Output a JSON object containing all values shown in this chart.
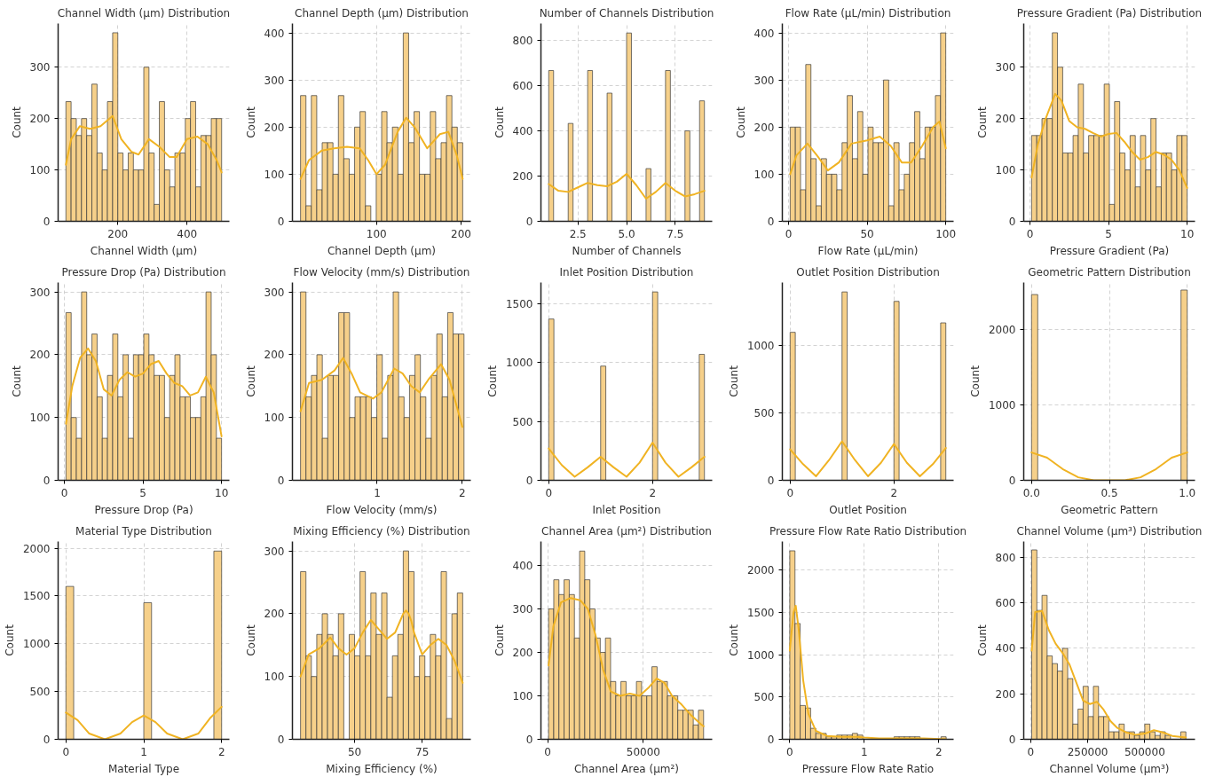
{
  "chart_data": [
    {
      "type": "histogram",
      "title": "Channel Width (µm) Distribution",
      "xlabel": "Channel Width (µm)",
      "ylabel": "Count",
      "xlim": [
        27.5,
        522.5
      ],
      "xticks": [
        200,
        400
      ],
      "ylim": [
        0,
        385
      ],
      "yticks": [
        0,
        100,
        200,
        300
      ],
      "grid": true,
      "series": [
        {
          "type": "histogram",
          "color": "#f6d08a",
          "bins": [
            50,
            65,
            80,
            95,
            110,
            125,
            140,
            155,
            170,
            185,
            200,
            215,
            230,
            245,
            260,
            275,
            290,
            305,
            320,
            335,
            350,
            365,
            380,
            395,
            410,
            425,
            440,
            455,
            470,
            485,
            500
          ],
          "values": [
            233,
            200,
            167,
            200,
            167,
            267,
            133,
            100,
            233,
            367,
            133,
            100,
            133,
            100,
            100,
            300,
            133,
            33,
            233,
            100,
            67,
            133,
            133,
            200,
            233,
            67,
            167,
            167,
            200,
            200
          ]
        },
        {
          "type": "line",
          "color": "#f0b323",
          "x": [
            50,
            65,
            90,
            120,
            150,
            185,
            210,
            240,
            260,
            290,
            320,
            350,
            370,
            400,
            430,
            460,
            485,
            500
          ],
          "values": [
            110,
            160,
            185,
            180,
            185,
            205,
            160,
            135,
            130,
            160,
            145,
            125,
            125,
            160,
            165,
            150,
            120,
            95
          ]
        }
      ]
    },
    {
      "type": "histogram",
      "title": "Channel Depth (µm) Distribution",
      "xlabel": "Channel Depth (µm)",
      "ylabel": "Count",
      "xlim": [
        0.4,
        211.6
      ],
      "xticks": [
        100,
        200
      ],
      "ylim": [
        0,
        420
      ],
      "yticks": [
        0,
        100,
        200,
        300,
        400
      ],
      "grid": true,
      "series": [
        {
          "type": "histogram",
          "color": "#f6d08a",
          "bins": [
            10,
            16.4,
            22.8,
            29.2,
            35.6,
            42,
            48.4,
            54.8,
            61.2,
            67.6,
            74,
            80.4,
            86.8,
            93.2,
            99.6,
            106,
            112.4,
            118.8,
            125.2,
            131.6,
            138,
            144.4,
            150.8,
            157.2,
            163.6,
            170,
            176.4,
            182.8,
            189.2,
            195.6,
            202
          ],
          "values": [
            267,
            33,
            267,
            67,
            167,
            167,
            100,
            267,
            133,
            100,
            200,
            233,
            33,
            null,
            100,
            233,
            167,
            200,
            100,
            400,
            167,
            233,
            100,
            100,
            233,
            133,
            167,
            267,
            200,
            167
          ]
        },
        {
          "type": "line",
          "color": "#f0b323",
          "x": [
            10,
            20,
            35,
            50,
            65,
            80,
            90,
            100,
            110,
            125,
            135,
            145,
            160,
            175,
            185,
            195,
            202
          ],
          "values": [
            90,
            130,
            150,
            155,
            158,
            155,
            130,
            100,
            120,
            190,
            220,
            200,
            155,
            185,
            190,
            140,
            90
          ]
        }
      ]
    },
    {
      "type": "histogram",
      "title": "Number of Channels Distribution",
      "xlabel": "Number of Channels",
      "ylabel": "Count",
      "xlim": [
        0.6,
        9.4
      ],
      "xticks": [
        {
          "value": 2.5,
          "label": "2.5"
        },
        {
          "value": 5,
          "label": "5.0"
        },
        {
          "value": 7.5,
          "label": "7.5"
        }
      ],
      "ylim": [
        0,
        875
      ],
      "yticks": [
        0,
        200,
        400,
        600,
        800
      ],
      "grid": true,
      "series": [
        {
          "type": "histogram",
          "color": "#f6d08a",
          "bins": [
            1,
            1.25,
            1.5,
            1.75,
            2,
            2.25,
            2.5,
            2.75,
            3,
            3.25,
            3.5,
            3.75,
            4,
            4.25,
            4.5,
            4.75,
            5,
            5.25,
            5.5,
            5.75,
            6,
            6.25,
            6.5,
            6.75,
            7,
            7.25,
            7.5,
            7.75,
            8,
            8.25,
            8.5,
            8.75,
            9
          ],
          "values": [
            667,
            null,
            null,
            null,
            433,
            null,
            null,
            null,
            667,
            null,
            null,
            null,
            567,
            null,
            null,
            null,
            833,
            null,
            null,
            null,
            233,
            null,
            null,
            null,
            667,
            null,
            null,
            null,
            400,
            null,
            null,
            533
          ]
        },
        {
          "type": "line",
          "color": "#f0b323",
          "x": [
            1,
            1.5,
            2,
            2.5,
            3,
            3.5,
            4,
            4.5,
            5,
            5.5,
            6,
            6.5,
            7,
            7.5,
            8,
            8.5,
            9
          ],
          "values": [
            165,
            135,
            130,
            150,
            170,
            160,
            155,
            175,
            210,
            160,
            100,
            130,
            170,
            135,
            110,
            120,
            135
          ]
        }
      ]
    },
    {
      "type": "histogram",
      "title": "Flow Rate (µL/min) Distribution",
      "xlabel": "Flow Rate (µL/min)",
      "ylabel": "Count",
      "xlim": [
        -4,
        105
      ],
      "xticks": [
        0,
        50,
        100
      ],
      "ylim": [
        0,
        420
      ],
      "yticks": [
        0,
        100,
        200,
        300,
        400
      ],
      "grid": true,
      "series": [
        {
          "type": "histogram",
          "color": "#f6d08a",
          "bins": [
            1,
            4.3,
            7.6,
            10.9,
            14.2,
            17.5,
            20.8,
            24.1,
            27.4,
            30.7,
            34,
            37.3,
            40.6,
            43.9,
            47.2,
            50.5,
            53.8,
            57.1,
            60.4,
            63.7,
            67,
            70.3,
            73.6,
            76.9,
            80.2,
            83.5,
            86.8,
            90.1,
            93.4,
            96.7,
            100
          ],
          "values": [
            200,
            200,
            67,
            333,
            133,
            33,
            133,
            100,
            100,
            67,
            167,
            267,
            133,
            233,
            100,
            200,
            167,
            167,
            300,
            33,
            167,
            67,
            100,
            167,
            233,
            133,
            200,
            200,
            267,
            400
          ]
        },
        {
          "type": "line",
          "color": "#f0b323",
          "x": [
            1,
            5,
            12,
            18,
            25,
            32,
            40,
            50,
            58,
            65,
            72,
            78,
            85,
            92,
            96,
            100
          ],
          "values": [
            100,
            140,
            165,
            140,
            108,
            125,
            165,
            172,
            180,
            160,
            125,
            125,
            160,
            200,
            212,
            155
          ]
        }
      ]
    },
    {
      "type": "histogram",
      "title": "Pressure Gradient (Pa) Distribution",
      "xlabel": "Pressure Gradient (Pa)",
      "ylabel": "Count",
      "xlim": [
        -0.4,
        10.5
      ],
      "xticks": [
        0,
        5,
        10
      ],
      "ylim": [
        0,
        385
      ],
      "yticks": [
        0,
        100,
        200,
        300
      ],
      "grid": true,
      "series": [
        {
          "type": "histogram",
          "color": "#f6d08a",
          "bins": [
            0.1,
            0.43,
            0.76,
            1.09,
            1.42,
            1.75,
            2.08,
            2.41,
            2.74,
            3.07,
            3.4,
            3.73,
            4.06,
            4.39,
            4.72,
            5.05,
            5.38,
            5.71,
            6.04,
            6.37,
            6.7,
            7.03,
            7.36,
            7.69,
            8.02,
            8.35,
            8.68,
            9.01,
            9.34,
            9.67,
            10
          ],
          "values": [
            167,
            167,
            200,
            200,
            367,
            300,
            133,
            133,
            167,
            267,
            133,
            167,
            167,
            167,
            267,
            33,
            233,
            133,
            100,
            167,
            67,
            167,
            100,
            200,
            67,
            133,
            133,
            100,
            167,
            167
          ]
        },
        {
          "type": "line",
          "color": "#f0b323",
          "x": [
            0.1,
            0.5,
            1,
            1.6,
            2,
            2.5,
            3,
            3.5,
            4,
            4.5,
            5,
            5.5,
            6,
            6.5,
            7,
            7.5,
            8,
            8.5,
            9,
            9.5,
            10
          ],
          "values": [
            85,
            150,
            200,
            248,
            235,
            195,
            183,
            180,
            172,
            165,
            170,
            172,
            155,
            135,
            120,
            125,
            135,
            130,
            120,
            100,
            65
          ]
        }
      ]
    },
    {
      "type": "histogram",
      "title": "Pressure Drop (Pa) Distribution",
      "xlabel": "Pressure Drop (Pa)",
      "ylabel": "Count",
      "xlim": [
        -0.4,
        10.5
      ],
      "xticks": [
        0,
        5,
        10
      ],
      "ylim": [
        0,
        315
      ],
      "yticks": [
        0,
        100,
        200,
        300
      ],
      "grid": true,
      "series": [
        {
          "type": "histogram",
          "color": "#f6d08a",
          "bins": [
            0.1,
            0.43,
            0.76,
            1.09,
            1.42,
            1.75,
            2.08,
            2.41,
            2.74,
            3.07,
            3.4,
            3.73,
            4.06,
            4.39,
            4.72,
            5.05,
            5.38,
            5.71,
            6.04,
            6.37,
            6.7,
            7.03,
            7.36,
            7.69,
            8.02,
            8.35,
            8.68,
            9.01,
            9.34,
            9.67,
            10
          ],
          "values": [
            267,
            100,
            67,
            300,
            200,
            233,
            133,
            67,
            167,
            233,
            133,
            200,
            67,
            200,
            200,
            233,
            200,
            167,
            167,
            100,
            167,
            200,
            133,
            133,
            100,
            100,
            133,
            300,
            200,
            67
          ]
        },
        {
          "type": "line",
          "color": "#f0b323",
          "x": [
            0.1,
            0.5,
            1,
            1.5,
            2,
            2.5,
            3,
            3.5,
            4,
            4.5,
            5,
            5.5,
            6,
            6.5,
            7,
            7.5,
            8,
            8.5,
            9,
            9.5,
            10
          ],
          "values": [
            90,
            150,
            195,
            210,
            190,
            145,
            135,
            160,
            172,
            165,
            170,
            185,
            190,
            170,
            155,
            150,
            135,
            140,
            165,
            140,
            70
          ]
        }
      ]
    },
    {
      "type": "histogram",
      "title": "Flow Velocity (mm/s) Distribution",
      "xlabel": "Flow Velocity (mm/s)",
      "ylabel": "Count",
      "xlim": [
        0.005,
        2.1
      ],
      "xticks": [
        1,
        2
      ],
      "ylim": [
        0,
        315
      ],
      "yticks": [
        0,
        100,
        200,
        300
      ],
      "grid": true,
      "series": [
        {
          "type": "histogram",
          "color": "#f6d08a",
          "bins": [
            0.1,
            0.164,
            0.228,
            0.292,
            0.356,
            0.42,
            0.484,
            0.548,
            0.612,
            0.676,
            0.74,
            0.804,
            0.868,
            0.932,
            0.996,
            1.06,
            1.124,
            1.188,
            1.252,
            1.316,
            1.38,
            1.444,
            1.508,
            1.572,
            1.636,
            1.7,
            1.764,
            1.828,
            1.892,
            1.956,
            2.02
          ],
          "values": [
            300,
            133,
            167,
            200,
            67,
            167,
            167,
            267,
            267,
            100,
            133,
            133,
            133,
            100,
            200,
            67,
            167,
            300,
            133,
            100,
            167,
            200,
            133,
            67,
            167,
            233,
            133,
            267,
            233,
            233
          ]
        },
        {
          "type": "line",
          "color": "#f0b323",
          "x": [
            0.1,
            0.2,
            0.35,
            0.5,
            0.6,
            0.7,
            0.8,
            0.95,
            1.05,
            1.2,
            1.3,
            1.4,
            1.5,
            1.6,
            1.75,
            1.85,
            2
          ],
          "values": [
            110,
            155,
            160,
            175,
            195,
            170,
            140,
            130,
            140,
            178,
            170,
            150,
            140,
            160,
            185,
            160,
            85
          ]
        }
      ]
    },
    {
      "type": "histogram",
      "title": "Inlet Position Distribution",
      "xlabel": "Inlet Position",
      "ylabel": "Count",
      "xlim": [
        -0.15,
        3.15
      ],
      "xticks": [
        0,
        2
      ],
      "ylim": [
        0,
        1680
      ],
      "yticks": [
        0,
        500,
        1000,
        1500
      ],
      "grid": true,
      "series": [
        {
          "type": "histogram",
          "color": "#f6d08a",
          "bins": [
            0,
            0.1,
            0.2,
            0.3,
            0.4,
            0.5,
            0.6,
            0.7,
            0.8,
            0.9,
            1,
            1.1,
            1.2,
            1.3,
            1.4,
            1.5,
            1.6,
            1.7,
            1.8,
            1.9,
            2,
            2.1,
            2.2,
            2.3,
            2.4,
            2.5,
            2.6,
            2.7,
            2.8,
            2.9,
            3
          ],
          "values": [
            1370,
            null,
            null,
            null,
            null,
            null,
            null,
            null,
            null,
            null,
            970,
            null,
            null,
            null,
            null,
            null,
            null,
            null,
            null,
            null,
            1600,
            null,
            null,
            null,
            null,
            null,
            null,
            null,
            null,
            1070
          ]
        },
        {
          "type": "line",
          "color": "#f0b323",
          "x": [
            0,
            0.25,
            0.5,
            0.75,
            1,
            1.25,
            1.5,
            1.75,
            2,
            2.25,
            2.5,
            2.75,
            3
          ],
          "values": [
            270,
            130,
            30,
            110,
            200,
            110,
            30,
            150,
            320,
            150,
            30,
            110,
            200
          ]
        }
      ]
    },
    {
      "type": "histogram",
      "title": "Outlet Position Distribution",
      "xlabel": "Outlet Position",
      "ylabel": "Count",
      "xlim": [
        -0.15,
        3.15
      ],
      "xticks": [
        0,
        2
      ],
      "ylim": [
        0,
        1470
      ],
      "yticks": [
        0,
        500,
        1000
      ],
      "grid": true,
      "series": [
        {
          "type": "histogram",
          "color": "#f6d08a",
          "bins": [
            0,
            0.1,
            0.2,
            0.3,
            0.4,
            0.5,
            0.6,
            0.7,
            0.8,
            0.9,
            1,
            1.1,
            1.2,
            1.3,
            1.4,
            1.5,
            1.6,
            1.7,
            1.8,
            1.9,
            2,
            2.1,
            2.2,
            2.3,
            2.4,
            2.5,
            2.6,
            2.7,
            2.8,
            2.9,
            3
          ],
          "values": [
            1100,
            null,
            null,
            null,
            null,
            null,
            null,
            null,
            null,
            null,
            1400,
            null,
            null,
            null,
            null,
            null,
            null,
            null,
            null,
            null,
            1330,
            null,
            null,
            null,
            null,
            null,
            null,
            null,
            null,
            1170
          ]
        },
        {
          "type": "line",
          "color": "#f0b323",
          "x": [
            0,
            0.25,
            0.5,
            0.75,
            1,
            1.25,
            1.5,
            1.75,
            2,
            2.25,
            2.5,
            2.75,
            3
          ],
          "values": [
            230,
            120,
            30,
            150,
            290,
            150,
            30,
            130,
            270,
            130,
            30,
            120,
            240
          ]
        }
      ]
    },
    {
      "type": "histogram",
      "title": "Geometric Pattern Distribution",
      "xlabel": "Geometric Pattern",
      "ylabel": "Count",
      "xlim": [
        -0.05,
        1.05
      ],
      "xticks": [
        {
          "value": 0,
          "label": "0.0"
        },
        {
          "value": 0.5,
          "label": "0.5"
        },
        {
          "value": 1,
          "label": "1.0"
        }
      ],
      "ylim": [
        0,
        2630
      ],
      "yticks": [
        0,
        1000,
        2000
      ],
      "grid": true,
      "series": [
        {
          "type": "histogram",
          "color": "#f6d08a",
          "bins": [
            0,
            0.04,
            0.08,
            0.12,
            0.16,
            0.2,
            0.24,
            0.28,
            0.32,
            0.36,
            0.4,
            0.44,
            0.48,
            0.52,
            0.56,
            0.6,
            0.64,
            0.68,
            0.72,
            0.76,
            0.8,
            0.84,
            0.88,
            0.92,
            0.96,
            1
          ],
          "values": [
            2470,
            null,
            null,
            null,
            null,
            null,
            null,
            null,
            null,
            null,
            null,
            null,
            null,
            null,
            null,
            null,
            null,
            null,
            null,
            null,
            null,
            null,
            null,
            null,
            2530
          ]
        },
        {
          "type": "line",
          "color": "#f0b323",
          "x": [
            0,
            0.1,
            0.2,
            0.3,
            0.4,
            0.5,
            0.6,
            0.7,
            0.8,
            0.9,
            1
          ],
          "values": [
            370,
            300,
            150,
            40,
            0,
            0,
            0,
            40,
            150,
            300,
            370
          ]
        }
      ]
    },
    {
      "type": "histogram",
      "title": "Material Type Distribution",
      "xlabel": "Material Type",
      "ylabel": "Count",
      "xlim": [
        -0.1,
        2.1
      ],
      "xticks": [
        0,
        1,
        2
      ],
      "ylim": [
        0,
        2070
      ],
      "yticks": [
        0,
        500,
        1000,
        1500,
        2000
      ],
      "grid": true,
      "series": [
        {
          "type": "histogram",
          "color": "#f6d08a",
          "bins": [
            0,
            0.1,
            0.2,
            0.3,
            0.4,
            0.5,
            0.6,
            0.7,
            0.8,
            0.9,
            1,
            1.1,
            1.2,
            1.3,
            1.4,
            1.5,
            1.6,
            1.7,
            1.8,
            1.9,
            2
          ],
          "values": [
            1600,
            null,
            null,
            null,
            null,
            null,
            null,
            null,
            null,
            null,
            1430,
            null,
            null,
            null,
            null,
            null,
            null,
            null,
            null,
            1970
          ]
        },
        {
          "type": "line",
          "color": "#f0b323",
          "x": [
            0,
            0.15,
            0.3,
            0.5,
            0.7,
            0.85,
            1,
            1.15,
            1.3,
            1.5,
            1.7,
            1.85,
            2
          ],
          "values": [
            280,
            200,
            60,
            0,
            60,
            180,
            250,
            180,
            60,
            0,
            60,
            220,
            340
          ]
        }
      ]
    },
    {
      "type": "histogram",
      "title": "Mixing Efficiency (%) Distribution",
      "xlabel": "Mixing Efficiency (%)",
      "ylabel": "Count",
      "xlim": [
        27,
        93
      ],
      "xticks": [
        50,
        75
      ],
      "ylim": [
        0,
        315
      ],
      "yticks": [
        0,
        100,
        200,
        300
      ],
      "grid": true,
      "series": [
        {
          "type": "histogram",
          "color": "#f6d08a",
          "bins": [
            30,
            32,
            34,
            36,
            38,
            40,
            42,
            44,
            46,
            48,
            50,
            52,
            54,
            56,
            58,
            60,
            62,
            64,
            66,
            68,
            70,
            72,
            74,
            76,
            78,
            80,
            82,
            84,
            86,
            88,
            90
          ],
          "values": [
            267,
            133,
            100,
            167,
            200,
            167,
            133,
            200,
            null,
            167,
            133,
            267,
            133,
            233,
            167,
            233,
            67,
            133,
            167,
            300,
            267,
            100,
            133,
            100,
            167,
            133,
            267,
            33,
            200,
            233
          ]
        },
        {
          "type": "line",
          "color": "#f0b323",
          "x": [
            30,
            33,
            37,
            41,
            44,
            47,
            50,
            53,
            56,
            59,
            62,
            65,
            67,
            68,
            69,
            70,
            71,
            72,
            75,
            78,
            81,
            84,
            87,
            90
          ],
          "values": [
            100,
            135,
            145,
            162,
            145,
            135,
            145,
            170,
            190,
            175,
            160,
            170,
            190,
            200,
            205,
            200,
            188,
            170,
            135,
            150,
            160,
            150,
            125,
            90
          ]
        }
      ]
    },
    {
      "type": "histogram",
      "title": "Channel Area (µm²) Distribution",
      "xlabel": "Channel Area (µm²)",
      "ylabel": "Count",
      "xlim": [
        -3500,
        86000
      ],
      "xticks": [
        0,
        50000
      ],
      "ylim": [
        0,
        455
      ],
      "yticks": [
        0,
        100,
        200,
        300,
        400
      ],
      "grid": true,
      "series": [
        {
          "type": "histogram",
          "color": "#f6d08a",
          "bins": [
            500,
            3200,
            5900,
            8600,
            11300,
            14000,
            16700,
            19400,
            22100,
            24800,
            27500,
            30200,
            32900,
            35600,
            38300,
            41000,
            43700,
            46400,
            49100,
            51800,
            54500,
            57200,
            59900,
            62600,
            65300,
            68000,
            70700,
            73400,
            76100,
            78800,
            81500
          ],
          "values": [
            300,
            367,
            333,
            367,
            333,
            233,
            433,
            367,
            300,
            233,
            200,
            233,
            133,
            100,
            133,
            100,
            100,
            133,
            100,
            100,
            167,
            133,
            133,
            100,
            100,
            67,
            67,
            67,
            33,
            67
          ]
        },
        {
          "type": "line",
          "color": "#f0b323",
          "x": [
            500,
            3000,
            7000,
            12000,
            17000,
            21000,
            25000,
            29000,
            33000,
            38000,
            43000,
            48000,
            53000,
            57000,
            61000,
            65000,
            70000,
            75000,
            80000,
            81500
          ],
          "values": [
            170,
            260,
            315,
            325,
            320,
            300,
            240,
            160,
            110,
            100,
            105,
            100,
            120,
            140,
            130,
            100,
            80,
            55,
            35,
            30
          ]
        }
      ]
    },
    {
      "type": "histogram",
      "title": "Pressure Flow Rate Ratio Distribution",
      "xlabel": "Pressure Flow Rate Ratio",
      "ylabel": "Count",
      "xlim": [
        -0.1,
        2.2
      ],
      "xticks": [
        0,
        1,
        2
      ],
      "ylim": [
        0,
        2340
      ],
      "yticks": [
        0,
        500,
        1000,
        1500,
        2000
      ],
      "grid": true,
      "series": [
        {
          "type": "histogram",
          "color": "#f6d08a",
          "bins": [
            0,
            0.07,
            0.14,
            0.21,
            0.28,
            0.35,
            0.42,
            0.49,
            0.56,
            0.63,
            0.7,
            0.77,
            0.84,
            0.91,
            0.98,
            1.05,
            1.12,
            1.19,
            1.26,
            1.33,
            1.4,
            1.47,
            1.54,
            1.61,
            1.68,
            1.75,
            1.82,
            1.89,
            1.96,
            2.03,
            2.1
          ],
          "values": [
            2230,
            1370,
            400,
            370,
            130,
            70,
            70,
            30,
            30,
            50,
            50,
            50,
            70,
            50,
            null,
            null,
            null,
            null,
            null,
            null,
            30,
            30,
            30,
            30,
            30,
            null,
            null,
            null,
            null,
            30
          ]
        },
        {
          "type": "line",
          "color": "#f0b323",
          "x": [
            0,
            0.05,
            0.08,
            0.12,
            0.18,
            0.25,
            0.35,
            0.5,
            0.7,
            0.9,
            1,
            1.2,
            1.5,
            1.8,
            2.1
          ],
          "values": [
            1050,
            1500,
            1580,
            1300,
            700,
            300,
            100,
            40,
            30,
            30,
            20,
            10,
            10,
            10,
            0
          ]
        }
      ]
    },
    {
      "type": "histogram",
      "title": "Channel Volume (µm³) Distribution",
      "xlabel": "Channel Volume (µm³)",
      "ylabel": "Count",
      "xlim": [
        -30000,
        720000
      ],
      "xticks": [
        {
          "value": 0,
          "label": "0"
        },
        {
          "value": 250000,
          "label": "250000"
        },
        {
          "value": 500000,
          "label": "500000"
        }
      ],
      "ylim": [
        0,
        870
      ],
      "yticks": [
        0,
        200,
        400,
        600,
        800
      ],
      "grid": true,
      "series": [
        {
          "type": "histogram",
          "color": "#f6d08a",
          "bins": [
            5000,
            27500,
            50000,
            72500,
            95000,
            117500,
            140000,
            162500,
            185000,
            207500,
            230000,
            252500,
            275000,
            297500,
            320000,
            342500,
            365000,
            387500,
            410000,
            432500,
            455000,
            477500,
            500000,
            522500,
            545000,
            567500,
            590000,
            612500,
            635000,
            657500,
            680000
          ],
          "values": [
            833,
            567,
            633,
            367,
            333,
            300,
            400,
            267,
            67,
            133,
            233,
            100,
            233,
            100,
            100,
            33,
            33,
            67,
            33,
            33,
            17,
            33,
            67,
            33,
            17,
            33,
            17,
            null,
            null,
            33
          ]
        },
        {
          "type": "line",
          "color": "#f0b323",
          "x": [
            5000,
            20000,
            50000,
            80000,
            110000,
            140000,
            170000,
            200000,
            230000,
            260000,
            290000,
            320000,
            350000,
            380000,
            420000,
            460000,
            500000,
            540000,
            580000,
            620000,
            680000
          ],
          "values": [
            390,
            560,
            565,
            480,
            420,
            380,
            330,
            250,
            170,
            155,
            165,
            130,
            80,
            50,
            30,
            20,
            25,
            40,
            30,
            15,
            8
          ]
        }
      ]
    }
  ]
}
